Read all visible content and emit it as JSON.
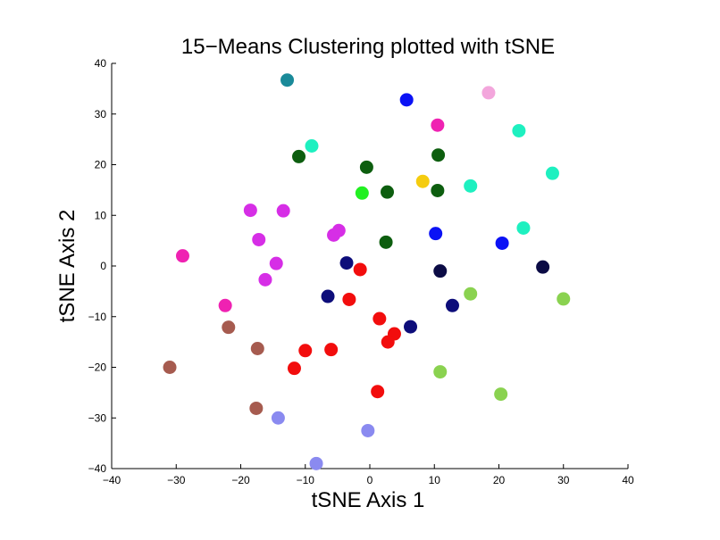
{
  "chart_data": {
    "type": "scatter",
    "title": "15−Means Clustering plotted with tSNE",
    "xlabel": "tSNE Axis 1",
    "ylabel": "tSNE Axis 2",
    "xlim": [
      -40,
      40
    ],
    "ylim": [
      -40,
      40
    ],
    "xticks": [
      -40,
      -30,
      -20,
      -10,
      0,
      10,
      20,
      30,
      40
    ],
    "yticks": [
      -40,
      -30,
      -20,
      -10,
      0,
      10,
      20,
      30,
      40
    ],
    "grid": false,
    "points": [
      {
        "x": -12.8,
        "y": 36.7,
        "color": "#1a8a99"
      },
      {
        "x": 5.7,
        "y": 32.8,
        "color": "#0b12f5"
      },
      {
        "x": 20.5,
        "y": 4.5,
        "color": "#0b12f5"
      },
      {
        "x": 10.2,
        "y": 6.4,
        "color": "#0b12f5"
      },
      {
        "x": 18.4,
        "y": 34.2,
        "color": "#f3a6dc"
      },
      {
        "x": 10.5,
        "y": 27.8,
        "color": "#ef22b2"
      },
      {
        "x": -22.4,
        "y": -7.8,
        "color": "#ef22b2"
      },
      {
        "x": -29.0,
        "y": 2.0,
        "color": "#ef22b2"
      },
      {
        "x": -9.0,
        "y": 23.7,
        "color": "#1ef0c0"
      },
      {
        "x": 23.1,
        "y": 26.7,
        "color": "#1ef0c0"
      },
      {
        "x": 28.3,
        "y": 18.3,
        "color": "#1ef0c0"
      },
      {
        "x": 15.6,
        "y": 15.8,
        "color": "#1ef0c0"
      },
      {
        "x": 23.8,
        "y": 7.5,
        "color": "#1ef0c0"
      },
      {
        "x": -11.0,
        "y": 21.6,
        "color": "#0d5e0f"
      },
      {
        "x": -0.5,
        "y": 19.5,
        "color": "#0d5e0f"
      },
      {
        "x": 10.6,
        "y": 21.9,
        "color": "#0d5e0f"
      },
      {
        "x": 2.7,
        "y": 14.6,
        "color": "#0d5e0f"
      },
      {
        "x": 10.5,
        "y": 14.9,
        "color": "#0d5e0f"
      },
      {
        "x": 2.5,
        "y": 4.7,
        "color": "#0d5e0f"
      },
      {
        "x": 8.2,
        "y": 16.7,
        "color": "#f5cc0f"
      },
      {
        "x": -1.2,
        "y": 14.4,
        "color": "#22f022"
      },
      {
        "x": -18.5,
        "y": 11.0,
        "color": "#d62ee6"
      },
      {
        "x": -13.4,
        "y": 10.9,
        "color": "#d62ee6"
      },
      {
        "x": -17.2,
        "y": 5.2,
        "color": "#d62ee6"
      },
      {
        "x": -5.6,
        "y": 6.1,
        "color": "#d62ee6"
      },
      {
        "x": -4.8,
        "y": 7.0,
        "color": "#d62ee6"
      },
      {
        "x": -14.5,
        "y": 0.5,
        "color": "#d62ee6"
      },
      {
        "x": -16.2,
        "y": -2.7,
        "color": "#d62ee6"
      },
      {
        "x": -3.6,
        "y": 0.6,
        "color": "#0d0d7a"
      },
      {
        "x": -6.5,
        "y": -6.0,
        "color": "#0d0d7a"
      },
      {
        "x": 12.8,
        "y": -7.8,
        "color": "#0d0d7a"
      },
      {
        "x": 6.3,
        "y": -12.0,
        "color": "#0d0d7a"
      },
      {
        "x": 10.9,
        "y": -1.0,
        "color": "#0b0b45"
      },
      {
        "x": 26.8,
        "y": -0.2,
        "color": "#0b0b45"
      },
      {
        "x": -1.5,
        "y": -0.7,
        "color": "#f20d0d"
      },
      {
        "x": -3.2,
        "y": -6.6,
        "color": "#f20d0d"
      },
      {
        "x": 1.5,
        "y": -10.4,
        "color": "#f20d0d"
      },
      {
        "x": 3.8,
        "y": -13.4,
        "color": "#f20d0d"
      },
      {
        "x": 2.8,
        "y": -15.0,
        "color": "#f20d0d"
      },
      {
        "x": -10.0,
        "y": -16.7,
        "color": "#f20d0d"
      },
      {
        "x": -6.0,
        "y": -16.5,
        "color": "#f20d0d"
      },
      {
        "x": -11.7,
        "y": -20.2,
        "color": "#f20d0d"
      },
      {
        "x": 1.2,
        "y": -24.8,
        "color": "#f20d0d"
      },
      {
        "x": 15.6,
        "y": -5.5,
        "color": "#8ad250"
      },
      {
        "x": 30.0,
        "y": -6.5,
        "color": "#8ad250"
      },
      {
        "x": 10.9,
        "y": -20.9,
        "color": "#8ad250"
      },
      {
        "x": 20.3,
        "y": -25.3,
        "color": "#8ad250"
      },
      {
        "x": -21.9,
        "y": -12.1,
        "color": "#a65b4f"
      },
      {
        "x": -17.4,
        "y": -16.3,
        "color": "#a65b4f"
      },
      {
        "x": -31.0,
        "y": -20.0,
        "color": "#a65b4f"
      },
      {
        "x": -17.6,
        "y": -28.1,
        "color": "#a65b4f"
      },
      {
        "x": -14.2,
        "y": -30.0,
        "color": "#8a8af0"
      },
      {
        "x": -0.3,
        "y": -32.5,
        "color": "#8a8af0"
      },
      {
        "x": -8.3,
        "y": -39.0,
        "color": "#8a8af0"
      }
    ]
  }
}
